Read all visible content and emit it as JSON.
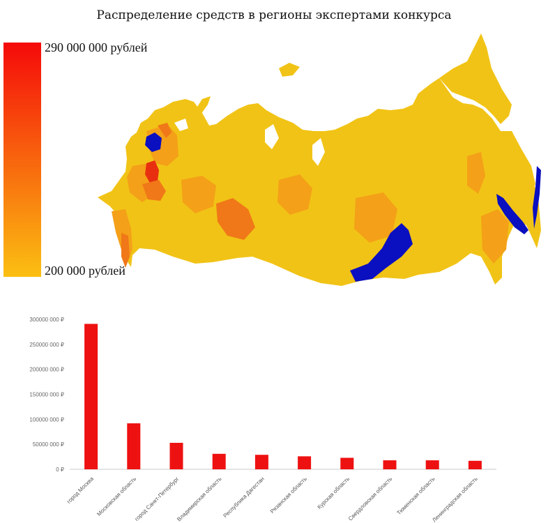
{
  "title": "Распределение средств в регионы экспертами конкурса",
  "legend": {
    "max_label": "290 000 000 рублей",
    "min_label": "200 000 рублей",
    "max_color": "#f50a0a",
    "min_color": "#fbbf12"
  },
  "map": {
    "base_color": "#f1c316",
    "mid_color": "#f4a018",
    "high_color": "#f07818",
    "top_color": "#e83010",
    "highlight_color": "#0a0fc0"
  },
  "chart_data": {
    "type": "bar",
    "bar_color": "#ee1111",
    "ylim": [
      0,
      300000000
    ],
    "yticks": [
      "0 ₽",
      "50000 000 ₽",
      "100000 000 ₽",
      "150000 000 ₽",
      "200000 000 ₽",
      "250000 000 ₽",
      "300000 000 ₽"
    ],
    "categories": [
      "город Москва",
      "Московская область",
      "город Санкт-Петербург",
      "Владимирская область",
      "Республика Дагестан",
      "Рязанская область",
      "Курская область",
      "Свердловская область",
      "Тюменская область",
      "Ленинградская область"
    ],
    "values": [
      291000000,
      92000000,
      53000000,
      31000000,
      29000000,
      26000000,
      23000000,
      18000000,
      18000000,
      17000000
    ]
  }
}
